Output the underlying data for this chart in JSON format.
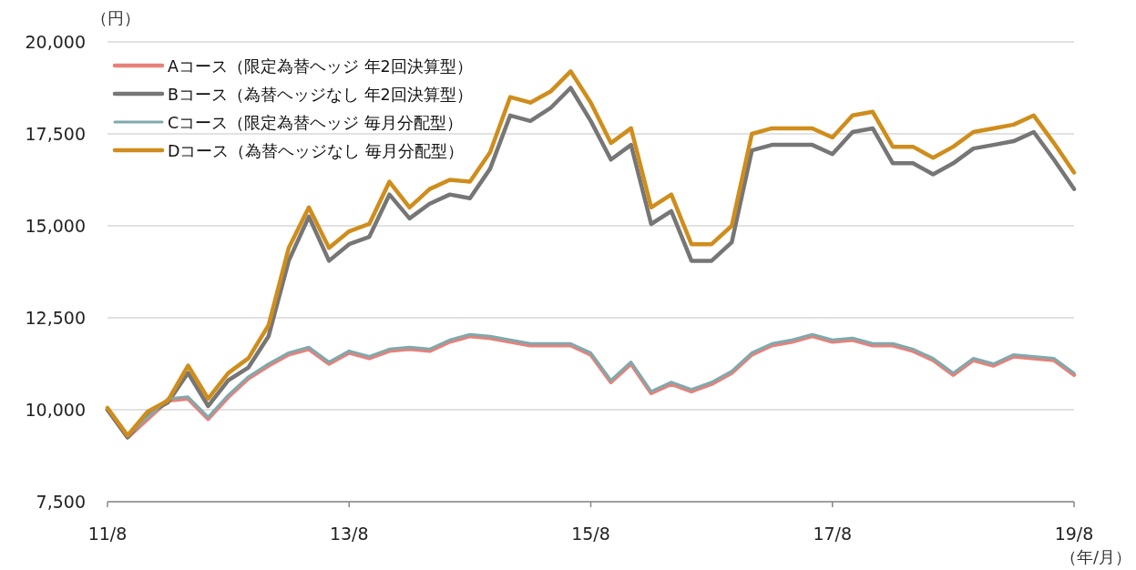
{
  "chart_data": {
    "type": "line",
    "ylabel": "（円）",
    "xlabel": "（年/月）",
    "categories": [
      "11/8",
      null,
      null,
      null,
      null,
      null,
      null,
      null,
      null,
      null,
      null,
      null,
      "13/8",
      null,
      null,
      null,
      null,
      null,
      null,
      null,
      null,
      null,
      null,
      null,
      "15/8",
      null,
      null,
      null,
      null,
      null,
      null,
      null,
      null,
      null,
      null,
      null,
      "17/8",
      null,
      null,
      null,
      null,
      null,
      null,
      null,
      null,
      null,
      null,
      null,
      "19/8"
    ],
    "ylim": [
      7500,
      20000
    ],
    "yticks": [
      {
        "value": 7500,
        "label": "7,500"
      },
      {
        "value": 10000,
        "label": "10,000"
      },
      {
        "value": 12500,
        "label": "12,500"
      },
      {
        "value": 15000,
        "label": "15,000"
      },
      {
        "value": 17500,
        "label": "17,500"
      },
      {
        "value": 20000,
        "label": "20,000"
      }
    ],
    "grid": "y",
    "legend": "top left",
    "line_style": "solid",
    "marker": "none",
    "series": [
      {
        "name": "Aコース（限定為替ヘッジ 年2回決算型）",
        "color": "#e8807a",
        "values": [
          10000,
          9250,
          9750,
          10250,
          10300,
          9750,
          10350,
          10850,
          11200,
          11500,
          11650,
          11250,
          11550,
          11400,
          11600,
          11650,
          11600,
          11850,
          12000,
          11950,
          11850,
          11750,
          11750,
          11750,
          11500,
          10750,
          11250,
          10450,
          10700,
          10500,
          10700,
          11000,
          11500,
          11750,
          11850,
          12000,
          11850,
          11900,
          11750,
          11750,
          11600,
          11350,
          10950,
          11350,
          11200,
          11450,
          11400,
          11350,
          10950
        ]
      },
      {
        "name": "Bコース（為替ヘッジなし 年2回決算型）",
        "color": "#767676",
        "values": [
          10000,
          9250,
          9900,
          10200,
          11000,
          10100,
          10800,
          11150,
          12000,
          14050,
          15250,
          14050,
          14500,
          14700,
          15850,
          15200,
          15600,
          15850,
          15750,
          16550,
          18000,
          17850,
          18200,
          18750,
          17850,
          16800,
          17200,
          15050,
          15400,
          14050,
          14050,
          14550,
          17050,
          17200,
          17200,
          17200,
          16950,
          17550,
          17650,
          16700,
          16700,
          16400,
          16700,
          17100,
          17200,
          17300,
          17550,
          16800,
          16000
        ]
      },
      {
        "name": "Cコース（限定為替ヘッジ 毎月分配型）",
        "color": "#7fa9ad",
        "values": [
          10050,
          9300,
          9800,
          10300,
          10350,
          9800,
          10400,
          10900,
          11250,
          11550,
          11700,
          11300,
          11600,
          11450,
          11650,
          11700,
          11650,
          11900,
          12050,
          12000,
          11900,
          11800,
          11800,
          11800,
          11550,
          10800,
          11300,
          10500,
          10750,
          10550,
          10750,
          11050,
          11550,
          11800,
          11900,
          12050,
          11900,
          11950,
          11800,
          11800,
          11650,
          11400,
          11000,
          11400,
          11250,
          11500,
          11450,
          11400,
          11000
        ]
      },
      {
        "name": "Dコース（為替ヘッジなし 毎月分配型）",
        "color": "#cf8d1c",
        "values": [
          10050,
          9300,
          9950,
          10250,
          11200,
          10300,
          11000,
          11400,
          12300,
          14400,
          15500,
          14400,
          14850,
          15050,
          16200,
          15500,
          16000,
          16250,
          16200,
          17000,
          18500,
          18350,
          18650,
          19200,
          18350,
          17250,
          17650,
          15500,
          15850,
          14500,
          14500,
          15000,
          17500,
          17650,
          17650,
          17650,
          17400,
          18000,
          18100,
          17150,
          17150,
          16850,
          17150,
          17550,
          17650,
          17750,
          18000,
          17250,
          16450
        ]
      }
    ]
  }
}
